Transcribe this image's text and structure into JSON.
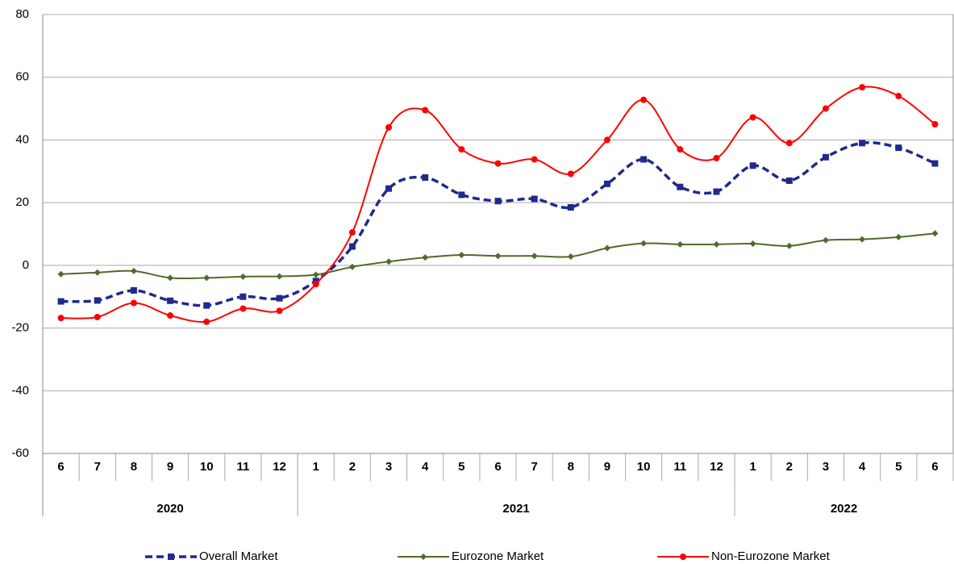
{
  "chart_data": {
    "type": "line",
    "groups": [
      {
        "label": "2020",
        "categories": [
          "6",
          "7",
          "8",
          "9",
          "10",
          "11",
          "12"
        ]
      },
      {
        "label": "2021",
        "categories": [
          "1",
          "2",
          "3",
          "4",
          "5",
          "6",
          "7",
          "8",
          "9",
          "10",
          "11",
          "12"
        ]
      },
      {
        "label": "2022",
        "categories": [
          "1",
          "2",
          "3",
          "4",
          "5",
          "6"
        ]
      }
    ],
    "series": [
      {
        "name": "Overall Market",
        "color": "#1f2a8a",
        "marker": "square",
        "dashed": true,
        "values": [
          -11.5,
          -11.2,
          -8,
          -11.3,
          -12.8,
          -10,
          -10.5,
          -5,
          6,
          24.5,
          28,
          22.5,
          20.5,
          21.2,
          18.5,
          26,
          33.8,
          25,
          23.5,
          31.8,
          27,
          34.5,
          39,
          37.5,
          32.5
        ]
      },
      {
        "name": "Eurozone Market",
        "color": "#4f6b2a",
        "marker": "diamond",
        "dashed": false,
        "values": [
          -2.8,
          -2.3,
          -1.8,
          -4,
          -4,
          -3.6,
          -3.5,
          -3,
          -0.5,
          1.2,
          2.5,
          3.3,
          3,
          3,
          2.8,
          5.5,
          7,
          6.7,
          6.7,
          6.9,
          6.2,
          8,
          8.3,
          9,
          10.2
        ]
      },
      {
        "name": "Non-Eurozone Market",
        "color": "#ff0000",
        "marker": "circle",
        "dashed": false,
        "values": [
          -16.8,
          -16.5,
          -12,
          -16,
          -18,
          -13.8,
          -14.5,
          -6,
          10.5,
          44,
          49.5,
          37,
          32.5,
          33.8,
          29.2,
          40,
          52.8,
          37,
          34.2,
          47.2,
          39,
          50,
          56.8,
          54,
          45
        ]
      }
    ],
    "ylim": [
      -60,
      80
    ],
    "yticks": [
      -60,
      -40,
      -20,
      0,
      20,
      40,
      60,
      80
    ],
    "grid": true,
    "legend": "bottom"
  }
}
